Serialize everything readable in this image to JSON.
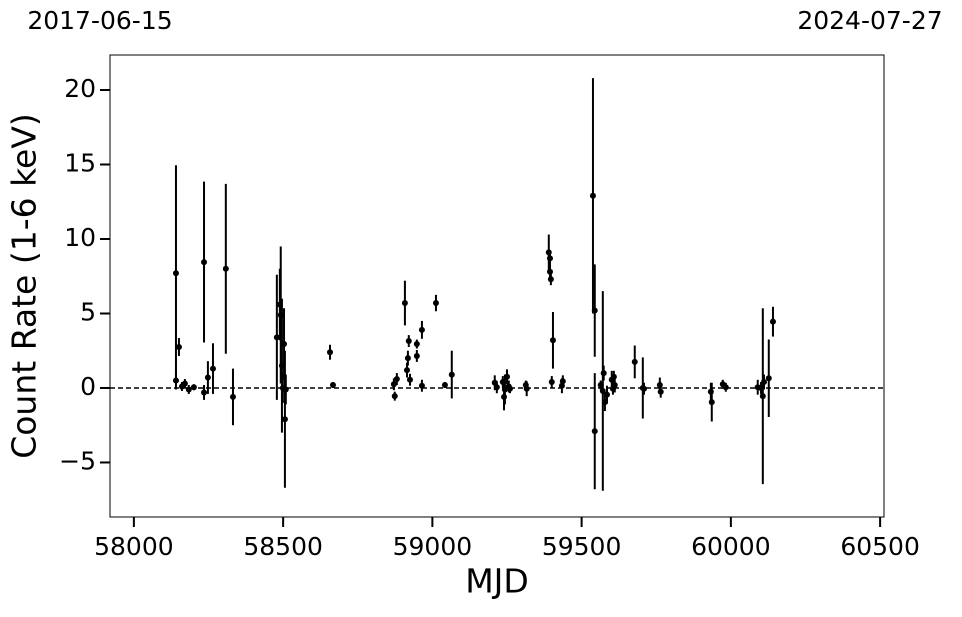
{
  "chart_data": {
    "type": "errorbar",
    "annotations": [
      "2017-06-15",
      "2024-07-27"
    ],
    "xlabel": "MJD",
    "ylabel": "Count Rate (1-6 keV)",
    "xlim": [
      57920,
      60513
    ],
    "ylim": [
      -8.66,
      22.35
    ],
    "xticks": [
      58000,
      58500,
      59000,
      59500,
      60000,
      60500
    ],
    "yticks": [
      {
        "value": -5,
        "label": "−5"
      },
      0,
      5,
      10,
      15,
      20
    ],
    "hline": 0,
    "series": [
      {
        "color": "#000000",
        "x": [
          58141,
          58141,
          58151,
          58161,
          58171,
          58184,
          58201,
          58235,
          58235,
          58248,
          58265,
          58308,
          58332,
          58479,
          58489,
          58492,
          58496,
          58503,
          58499,
          58506,
          58509,
          58657,
          58667,
          58871,
          58874,
          58881,
          58908,
          58915,
          58918,
          58921,
          58925,
          58948,
          58948,
          58965,
          58965,
          59012,
          59042,
          59065,
          59209,
          59216,
          59236,
          59240,
          59243,
          59250,
          59256,
          59260,
          59313,
          59316,
          59390,
          59394,
          59394,
          59397,
          59404,
          59400,
          59434,
          59437,
          59538,
          59544,
          59544,
          59564,
          59571,
          59574,
          59578,
          59585,
          59601,
          59605,
          59608,
          59611,
          59678,
          59705,
          59709,
          59762,
          59765,
          59933,
          59936,
          59973,
          59983,
          60090,
          60101,
          60107,
          60111,
          60127,
          60141
        ],
        "values": [
          7.7,
          0.5,
          2.75,
          0.1,
          0.3,
          -0.1,
          0.05,
          8.45,
          -0.3,
          0.7,
          1.3,
          8.0,
          -0.6,
          3.4,
          5.6,
          4.9,
          1.5,
          2.95,
          0,
          -2.1,
          -0.1,
          2.4,
          0.2,
          0.25,
          -0.55,
          0.6,
          5.7,
          1.2,
          2.0,
          3.15,
          0.55,
          2.95,
          2.15,
          3.9,
          0.15,
          5.7,
          0.2,
          0.9,
          0.35,
          0.05,
          0.4,
          -0.6,
          -0.1,
          0.75,
          0.1,
          -0.05,
          0.2,
          -0.05,
          9.1,
          8.7,
          7.8,
          7.3,
          3.2,
          0.4,
          0.15,
          0.45,
          12.9,
          5.2,
          -2.9,
          0.2,
          -0.2,
          1.0,
          -0.95,
          -0.45,
          0.55,
          -0.05,
          0.75,
          0.2,
          1.75,
          0,
          -0.05,
          0.2,
          -0.25,
          -0.25,
          -0.95,
          0.25,
          0.05,
          0.05,
          0,
          -0.55,
          0.4,
          0.65,
          4.45
        ],
        "errors": [
          7.25,
          0.6,
          0.6,
          0.3,
          0.3,
          0.3,
          0.2,
          5.4,
          0.5,
          1.1,
          1.7,
          5.7,
          1.9,
          4.2,
          2.4,
          4.6,
          4.5,
          2.4,
          1.0,
          4.6,
          1.0,
          0.5,
          0.2,
          0.4,
          0.3,
          0.4,
          1.5,
          0.5,
          0.5,
          0.4,
          0.4,
          0.3,
          0.4,
          0.6,
          0.4,
          0.55,
          0.2,
          1.6,
          0.5,
          0.4,
          0.4,
          0.9,
          1.0,
          0.5,
          0.4,
          0.3,
          0.3,
          0.5,
          1.2,
          0.5,
          0.5,
          0.4,
          1.9,
          0.4,
          0.5,
          0.4,
          7.9,
          3.1,
          3.9,
          0.3,
          6.7,
          0.5,
          0.6,
          0.6,
          0.6,
          0.4,
          0.4,
          0.5,
          1.1,
          2.05,
          0.4,
          0.5,
          0.4,
          0.6,
          1.3,
          0.3,
          0.3,
          0.5,
          0.4,
          5.9,
          0.5,
          2.6,
          1.0
        ]
      }
    ]
  }
}
